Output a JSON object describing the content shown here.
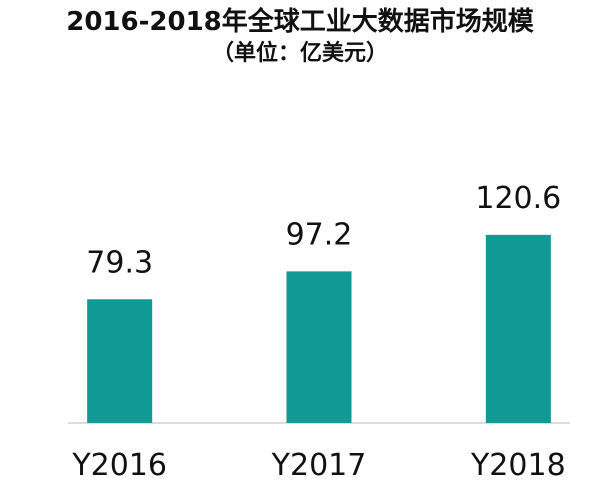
{
  "chart_data": {
    "type": "bar",
    "title": "2016-2018年全球工业大数据市场规模",
    "subtitle": "（单位：亿美元）",
    "categories": [
      "Y2016",
      "Y2017",
      "Y2018"
    ],
    "values": [
      79.3,
      97.2,
      120.6
    ],
    "data_labels": [
      "79.3",
      "97.2",
      "120.6"
    ],
    "ylim": [
      0,
      168
    ],
    "grid": false,
    "bar_color": "#0f9a96",
    "axis_color": "#d0d0d0"
  }
}
